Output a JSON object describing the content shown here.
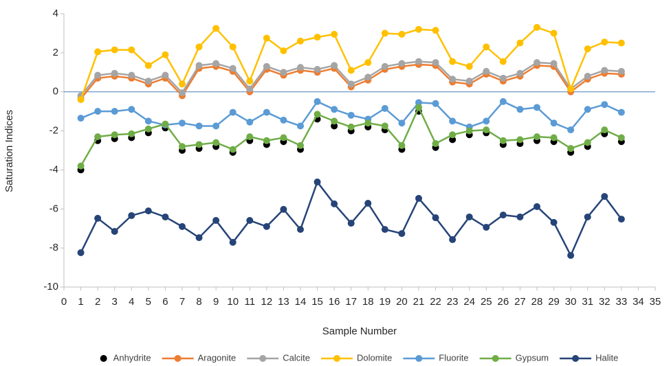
{
  "chart_data": {
    "type": "line",
    "x_label": "Sample Number",
    "y_label": "Saturation Indices",
    "x": [
      1,
      2,
      3,
      4,
      5,
      6,
      7,
      8,
      9,
      10,
      11,
      12,
      13,
      14,
      15,
      16,
      17,
      18,
      19,
      20,
      21,
      22,
      23,
      24,
      25,
      26,
      27,
      28,
      29,
      30,
      31,
      32,
      33
    ],
    "xlim": [
      0,
      35
    ],
    "xticks": [
      0,
      1,
      2,
      3,
      4,
      5,
      6,
      7,
      8,
      9,
      10,
      11,
      12,
      13,
      14,
      15,
      16,
      17,
      18,
      19,
      20,
      21,
      22,
      23,
      24,
      25,
      26,
      27,
      28,
      29,
      30,
      31,
      32,
      33,
      34,
      35
    ],
    "ylim": [
      -10,
      4
    ],
    "yticks": [
      -10,
      -8,
      -6,
      -4,
      -2,
      0,
      2,
      4
    ],
    "grid": false,
    "legend": "bottom",
    "series": [
      {
        "name": "Anhydrite",
        "color": "#000000",
        "show_line": false,
        "values": [
          -4.0,
          -2.5,
          -2.4,
          -2.35,
          -2.1,
          -1.85,
          -3.0,
          -2.9,
          -2.8,
          -3.1,
          -2.5,
          -2.7,
          -2.55,
          -2.95,
          -1.4,
          -1.75,
          -2.0,
          -1.8,
          -1.95,
          -2.95,
          -1.0,
          -2.85,
          -2.45,
          -2.2,
          -2.1,
          -2.7,
          -2.65,
          -2.5,
          -2.55,
          -3.1,
          -2.8,
          -2.15,
          -2.55
        ]
      },
      {
        "name": "Aragonite",
        "color": "#ed7d31",
        "show_line": true,
        "values": [
          -0.35,
          0.7,
          0.8,
          0.7,
          0.4,
          0.7,
          -0.2,
          1.2,
          1.3,
          1.05,
          0.0,
          1.15,
          0.85,
          1.1,
          1.0,
          1.2,
          0.25,
          0.6,
          1.15,
          1.3,
          1.4,
          1.35,
          0.5,
          0.4,
          0.9,
          0.55,
          0.8,
          1.35,
          1.3,
          0.0,
          0.65,
          0.95,
          0.9
        ]
      },
      {
        "name": "Calcite",
        "color": "#a5a5a5",
        "show_line": true,
        "values": [
          -0.2,
          0.85,
          0.95,
          0.85,
          0.55,
          0.85,
          -0.05,
          1.35,
          1.45,
          1.2,
          0.15,
          1.3,
          1.0,
          1.25,
          1.15,
          1.35,
          0.4,
          0.75,
          1.3,
          1.45,
          1.55,
          1.5,
          0.65,
          0.55,
          1.05,
          0.7,
          0.95,
          1.5,
          1.45,
          0.15,
          0.8,
          1.1,
          1.05
        ]
      },
      {
        "name": "Dolomite",
        "color": "#ffc000",
        "show_line": true,
        "values": [
          -0.4,
          2.05,
          2.15,
          2.15,
          1.35,
          1.9,
          0.4,
          2.3,
          3.25,
          2.3,
          0.55,
          2.75,
          2.1,
          2.6,
          2.8,
          2.95,
          1.1,
          1.5,
          3.0,
          2.95,
          3.2,
          3.15,
          1.55,
          1.3,
          2.3,
          1.55,
          2.5,
          3.3,
          3.0,
          0.15,
          2.2,
          2.55,
          2.5
        ]
      },
      {
        "name": "Fluorite",
        "color": "#5b9bd5",
        "show_line": true,
        "values": [
          -1.35,
          -1.0,
          -1.0,
          -0.9,
          -1.5,
          -1.7,
          -1.6,
          -1.75,
          -1.75,
          -1.05,
          -1.55,
          -1.05,
          -1.45,
          -1.75,
          -0.5,
          -0.9,
          -1.2,
          -1.4,
          -0.85,
          -1.6,
          -0.55,
          -0.6,
          -1.5,
          -1.8,
          -1.5,
          -0.5,
          -0.9,
          -0.8,
          -1.6,
          -1.95,
          -0.9,
          -0.65,
          -1.05
        ]
      },
      {
        "name": "Gypsum",
        "color": "#70ad47",
        "show_line": true,
        "values": [
          -3.8,
          -2.3,
          -2.2,
          -2.15,
          -1.9,
          -1.65,
          -2.8,
          -2.7,
          -2.6,
          -2.95,
          -2.3,
          -2.5,
          -2.35,
          -2.75,
          -1.15,
          -1.5,
          -1.8,
          -1.6,
          -1.75,
          -2.75,
          -0.8,
          -2.65,
          -2.2,
          -2.0,
          -1.95,
          -2.5,
          -2.45,
          -2.3,
          -2.35,
          -2.9,
          -2.6,
          -1.95,
          -2.35
        ]
      },
      {
        "name": "Halite",
        "color": "#264478",
        "show_line": true,
        "values": [
          -8.24,
          -6.48,
          -7.15,
          -6.34,
          -6.1,
          -6.41,
          -6.9,
          -7.47,
          -6.59,
          -7.71,
          -6.59,
          -6.9,
          -6.02,
          -7.05,
          -4.62,
          -5.74,
          -6.73,
          -5.71,
          -7.05,
          -7.26,
          -5.46,
          -6.45,
          -7.57,
          -6.41,
          -6.94,
          -6.31,
          -6.41,
          -5.88,
          -6.69,
          -8.38,
          -6.41,
          -5.36,
          -6.52
        ]
      }
    ]
  }
}
